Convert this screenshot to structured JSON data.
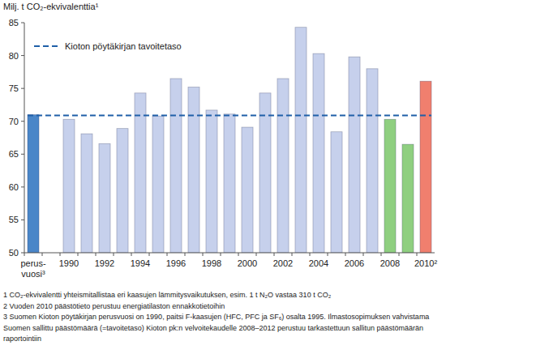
{
  "chart_data": {
    "type": "bar",
    "title": "Milj. t CO₂-ekvivalenttia¹",
    "categories": [
      "perus-vuosi³",
      null,
      "1990",
      null,
      "1992",
      null,
      "1994",
      null,
      "1996",
      null,
      "1998",
      null,
      "2000",
      null,
      "2002",
      null,
      "2004",
      null,
      "2006",
      null,
      "2008",
      null,
      "2010²"
    ],
    "values": [
      71.0,
      null,
      70.3,
      68.1,
      66.6,
      68.9,
      74.3,
      70.8,
      76.5,
      75.2,
      71.7,
      71.1,
      69.1,
      74.3,
      76.5,
      84.3,
      80.3,
      68.4,
      79.8,
      78.0,
      70.3,
      66.5,
      76.1
    ],
    "colors": [
      "#4a86c8",
      null,
      "#c6d0ec",
      "#c6d0ec",
      "#c6d0ec",
      "#c6d0ec",
      "#c6d0ec",
      "#c6d0ec",
      "#c6d0ec",
      "#c6d0ec",
      "#c6d0ec",
      "#c6d0ec",
      "#c6d0ec",
      "#c6d0ec",
      "#c6d0ec",
      "#c6d0ec",
      "#c6d0ec",
      "#c6d0ec",
      "#c6d0ec",
      "#c6d0ec",
      "#8fcf80",
      "#8fcf80",
      "#f07f6e"
    ],
    "ylim": [
      50,
      85
    ],
    "yticks": [
      50,
      55,
      60,
      65,
      70,
      75,
      80,
      85
    ],
    "grid": false,
    "legend": "upper left",
    "target": {
      "label": "Kioton pöytäkirjan tavoitetaso",
      "value": 70.9,
      "color": "#1f5fa8",
      "line_style": "dashed"
    },
    "footnotes": [
      "1 CO₂-ekvivalentti yhteismitallistaa eri kaasujen lämmitysvaikutuksen, esim. 1 t N₂O vastaa 310 t CO₂",
      "2 Vuoden 2010 päästötieto perustuu energiatilaston ennakkotietoihin",
      "3 Suomen Kioton pöytäkirjan perusvuosi on 1990, paitsi F-kaasujen (HFC, PFC ja SF₆) osalta  1995. Ilmastosopimuksen vahvistama",
      "Suomen sallittu päästömäärä (=tavoitetaso) Kioton pk:n velvoitekaudelle 2008–2012 perustuu tarkastettuun sallitun päästömäärän",
      "raportointiin"
    ]
  }
}
